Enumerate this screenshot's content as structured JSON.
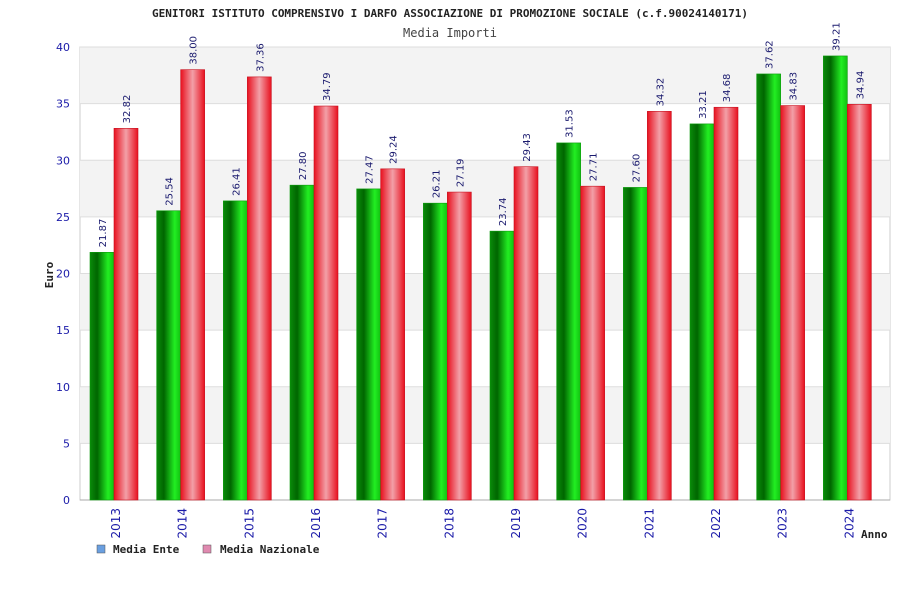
{
  "chart_data": {
    "type": "bar",
    "title": "GENITORI ISTITUTO COMPRENSIVO I DARFO ASSOCIAZIONE DI PROMOZIONE SOCIALE (c.f.90024140171)",
    "subtitle": "Media Importi",
    "xlabel": "Anno",
    "ylabel": "Euro",
    "ylim": [
      0,
      40
    ],
    "yticks": [
      "0",
      "5",
      "10",
      "15",
      "20",
      "25",
      "30",
      "35",
      "40"
    ],
    "grid": true,
    "legend_position": "bottom-left",
    "categories": [
      "2013",
      "2014",
      "2015",
      "2016",
      "2017",
      "2018",
      "2019",
      "2020",
      "2021",
      "2022",
      "2023",
      "2024"
    ],
    "series": [
      {
        "name": "Media Ente",
        "legend_color": "#6a9fe0",
        "bar_color": "#11cc11",
        "values": [
          21.87,
          25.54,
          26.41,
          27.8,
          27.47,
          26.21,
          23.74,
          31.53,
          27.6,
          33.21,
          37.62,
          39.21
        ],
        "labels": [
          "21.87",
          "25.54",
          "26.41",
          "27.80",
          "27.47",
          "26.21",
          "23.74",
          "31.53",
          "27.60",
          "33.21",
          "37.62",
          "39.21"
        ]
      },
      {
        "name": "Media Nazionale",
        "legend_color": "#e08ab0",
        "bar_color": "#ee1c2e",
        "values": [
          32.82,
          38.0,
          37.36,
          34.79,
          29.24,
          27.19,
          29.43,
          27.71,
          34.32,
          34.68,
          34.83,
          34.94
        ],
        "labels": [
          "32.82",
          "38.00",
          "37.36",
          "34.79",
          "29.24",
          "27.19",
          "29.43",
          "27.71",
          "34.32",
          "34.68",
          "34.83",
          "34.94"
        ]
      }
    ]
  }
}
